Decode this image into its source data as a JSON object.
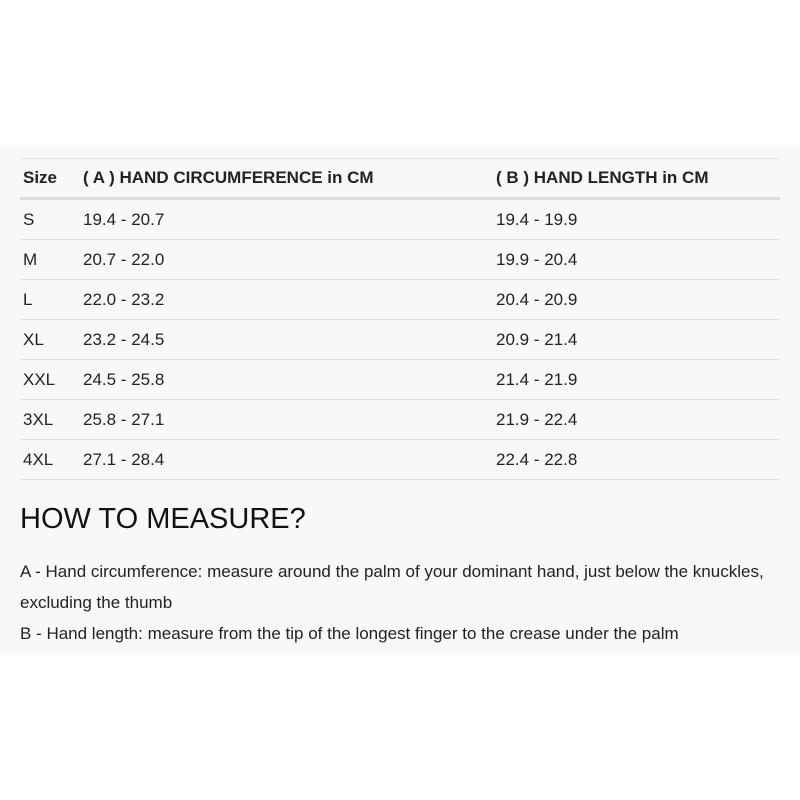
{
  "table": {
    "headers": [
      "Size",
      "( A ) HAND CIRCUMFERENCE in CM",
      "( B ) HAND LENGTH in CM"
    ],
    "rows": [
      [
        "S",
        "19.4 - 20.7",
        "19.4 - 19.9"
      ],
      [
        "M",
        "20.7 - 22.0",
        "19.9 - 20.4"
      ],
      [
        "L",
        "22.0 - 23.2",
        "20.4 - 20.9"
      ],
      [
        "XL",
        "23.2 - 24.5",
        "20.9 - 21.4"
      ],
      [
        "XXL",
        "24.5 - 25.8",
        "21.4 - 21.9"
      ],
      [
        "3XL",
        "25.8 - 27.1",
        "21.9 - 22.4"
      ],
      [
        "4XL",
        "27.1 - 28.4",
        "22.4 - 22.8"
      ]
    ]
  },
  "measure": {
    "title": "HOW TO MEASURE?",
    "line_a": "A - Hand circumference: measure around the palm of your dominant hand, just below the knuckles, excluding the thumb",
    "line_b": "B - Hand length: measure from the tip of the longest finger to the crease under the palm"
  }
}
